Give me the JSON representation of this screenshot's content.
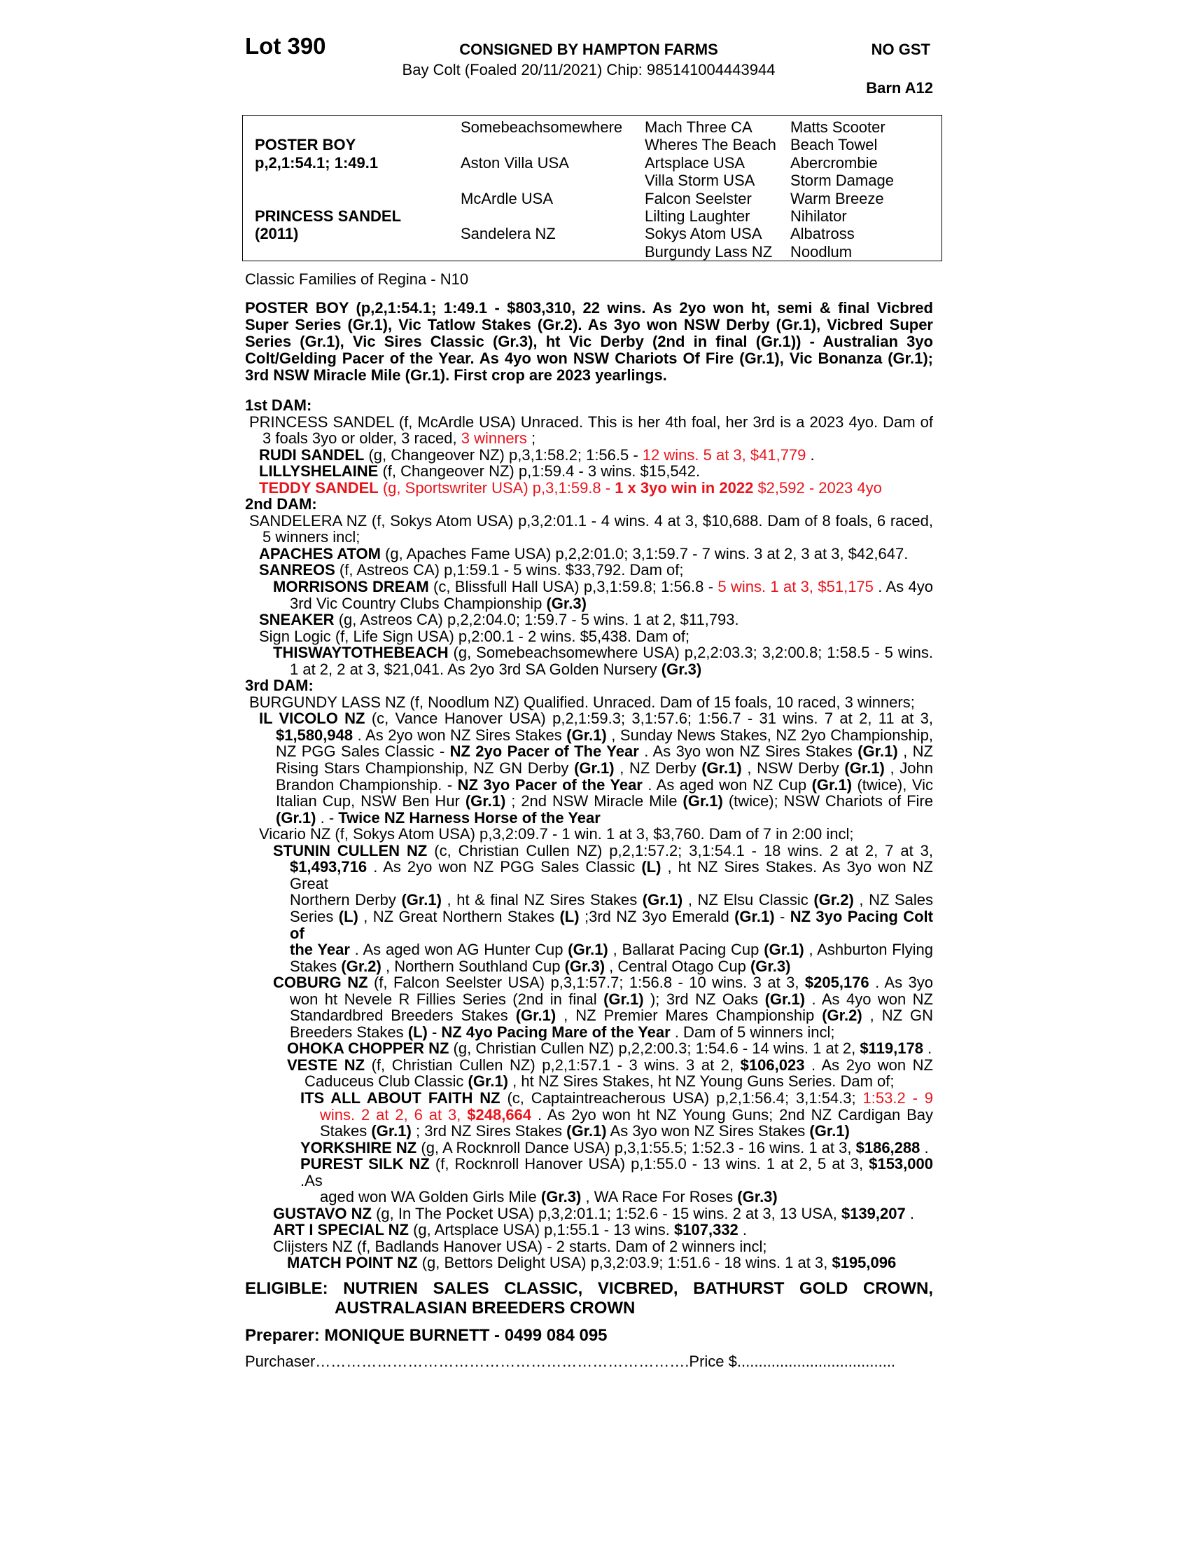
{
  "header": {
    "lot": "Lot 390",
    "consigned": "CONSIGNED BY HAMPTON FARMS",
    "gst": "NO GST",
    "description": "Bay Colt (Foaled 20/11/2021) Chip: 985141004443944",
    "barn": "Barn A12"
  },
  "pedigree": {
    "sire": "POSTER BOY",
    "sire_record": "p,2,1:54.1; 1:49.1",
    "dam": "PRINCESS SANDEL",
    "dam_year": "(2011)",
    "gen2": [
      "Somebeachsomewhere",
      "Aston Villa USA",
      "McArdle USA",
      "Sandelera NZ"
    ],
    "gen3": [
      "Mach Three CA",
      "Wheres The Beach",
      "Artsplace USA",
      "Villa Storm USA",
      "Falcon Seelster",
      "Lilting Laughter",
      "Sokys Atom USA",
      "Burgundy Lass NZ"
    ],
    "gen4": [
      "Matts Scooter",
      "Beach Towel",
      "Abercrombie",
      "Storm Damage",
      "Warm Breeze",
      "Nihilator",
      "Albatross",
      "Noodlum"
    ]
  },
  "family": "Classic Families of Regina - N10",
  "sire_para": {
    "lines": [
      [
        [
          "POSTER BOY (p,2,1:54.1; 1:49.1 - $803,310, 22 wins. As 2yo won ht, semi & final Vicbred",
          ""
        ]
      ],
      [
        [
          "Super Series (Gr.1), Vic Tatlow Stakes (Gr.2). As 3yo won NSW Derby (Gr.1), Vicbred Super",
          ""
        ]
      ],
      [
        [
          "Series (Gr.1), Vic Sires Classic (Gr.3), ht Vic Derby (2nd in final (Gr.1)) - Australian 3yo",
          ""
        ]
      ],
      [
        [
          "Colt/Gelding Pacer of the Year. As 4yo won NSW Chariots Of Fire (Gr.1), Vic Bonanza (Gr.1);",
          ""
        ]
      ],
      [
        [
          "3rd NSW Miracle Mile (Gr.1). First crop are 2023 yearlings.",
          ""
        ]
      ]
    ]
  },
  "dam_notes": {
    "entries": [
      {
        "level": "h",
        "lines": [
          [
            [
              "1st DAM:",
              "b"
            ]
          ]
        ]
      },
      {
        "level": 0,
        "lines": [
          [
            [
              "PRINCESS SANDEL (f, McArdle USA) Unraced. This is her 4th foal, her 3rd is a 2023 4yo. Dam of",
              ""
            ]
          ],
          [
            [
              "3 foals 3yo or older, 3 raced, ",
              ""
            ],
            [
              "3 winners",
              "r"
            ],
            [
              ";",
              ""
            ]
          ]
        ]
      },
      {
        "level": 1,
        "lines": [
          [
            [
              "RUDI SANDEL",
              "b"
            ],
            [
              " (g, Changeover NZ) p,3,1:58.2; 1:56.5 - ",
              ""
            ],
            [
              "12 wins. 5 at 3, $41,779",
              "r"
            ],
            [
              ".",
              ""
            ]
          ]
        ]
      },
      {
        "level": 1,
        "lines": [
          [
            [
              "LILLYSHELAINE",
              "b"
            ],
            [
              " (f, Changeover NZ) p,1:59.4 - 3 wins. $15,542.",
              ""
            ]
          ]
        ]
      },
      {
        "level": 1,
        "lines": [
          [
            [
              "TEDDY SANDEL",
              "b r"
            ],
            [
              " (g, Sportswriter USA) p,3,1:59.8 - ",
              "r"
            ],
            [
              "1 x 3yo win in 2022",
              "b r"
            ],
            [
              " $2,592 - 2023 4yo",
              "r"
            ]
          ]
        ]
      },
      {
        "level": "h",
        "lines": [
          [
            [
              "2nd DAM:",
              "b"
            ]
          ]
        ]
      },
      {
        "level": 0,
        "lines": [
          [
            [
              "SANDELERA NZ (f, Sokys Atom USA) p,3,2:01.1 - 4 wins. 4 at 3, $10,688. Dam of 8 foals, 6 raced,",
              ""
            ]
          ],
          [
            [
              "5 winners incl;",
              ""
            ]
          ]
        ]
      },
      {
        "level": 1,
        "lines": [
          [
            [
              "APACHES ATOM",
              "b"
            ],
            [
              " (g, Apaches Fame USA) p,2,2:01.0; 3,1:59.7 - 7 wins. 3 at 2, 3 at 3, $42,647.",
              ""
            ]
          ]
        ]
      },
      {
        "level": 1,
        "lines": [
          [
            [
              "SANREOS",
              "b"
            ],
            [
              " (f, Astreos CA) p,1:59.1 - 5 wins. $33,792. Dam of;",
              ""
            ]
          ]
        ]
      },
      {
        "level": 2,
        "lines": [
          [
            [
              "MORRISONS DREAM",
              "b"
            ],
            [
              " (c, Blissfull Hall USA) p,3,1:59.8; 1:56.8 - ",
              ""
            ],
            [
              "5 wins. 1 at 3, $51,175",
              "r"
            ],
            [
              ". As 4yo",
              ""
            ]
          ],
          [
            [
              "3rd Vic Country Clubs Championship ",
              ""
            ],
            [
              "(Gr.3)",
              "b"
            ]
          ]
        ]
      },
      {
        "level": 1,
        "lines": [
          [
            [
              "SNEAKER",
              "b"
            ],
            [
              " (g, Astreos CA) p,2,2:04.0; 1:59.7 - 5 wins. 1 at 2, $11,793.",
              ""
            ]
          ]
        ]
      },
      {
        "level": 1,
        "lines": [
          [
            [
              "Sign Logic (f, Life Sign USA) p,2:00.1 - 2 wins. $5,438. Dam of;",
              ""
            ]
          ]
        ]
      },
      {
        "level": 2,
        "lines": [
          [
            [
              "THISWAYTOTHEBEACH",
              "b"
            ],
            [
              " (g, Somebeachsomewhere USA) p,2,2:03.3; 3,2:00.8; 1:58.5 - 5 wins.",
              ""
            ]
          ],
          [
            [
              "1 at 2, 2 at 3, $21,041. As 2yo 3rd SA Golden Nursery ",
              ""
            ],
            [
              "(Gr.3)",
              "b"
            ]
          ]
        ]
      },
      {
        "level": "h",
        "lines": [
          [
            [
              "3rd DAM:",
              "b"
            ]
          ]
        ]
      },
      {
        "level": 0,
        "lines": [
          [
            [
              "BURGUNDY LASS NZ (f, Noodlum NZ) Qualified. Unraced. Dam of 15 foals, 10 raced, 3 winners;",
              ""
            ]
          ]
        ]
      },
      {
        "level": 1,
        "lines": [
          [
            [
              "IL VICOLO NZ",
              "b"
            ],
            [
              " (c, Vance Hanover USA) p,2,1:59.3; 3,1:57.6; 1:56.7 - 31 wins. 7 at 2, 11 at 3,",
              ""
            ]
          ],
          [
            [
              "$1,580,948",
              "b"
            ],
            [
              ". As 2yo won NZ Sires Stakes ",
              ""
            ],
            [
              "(Gr.1)",
              "b"
            ],
            [
              ", Sunday News Stakes, NZ 2yo Championship,",
              ""
            ]
          ],
          [
            [
              "NZ PGG Sales Classic - ",
              ""
            ],
            [
              "NZ 2yo Pacer of The Year",
              "b"
            ],
            [
              ". As 3yo won NZ Sires Stakes ",
              ""
            ],
            [
              "(Gr.1)",
              "b"
            ],
            [
              ", NZ",
              ""
            ]
          ],
          [
            [
              "Rising Stars Championship, NZ GN Derby ",
              ""
            ],
            [
              "(Gr.1)",
              "b"
            ],
            [
              ", NZ Derby ",
              ""
            ],
            [
              "(Gr.1)",
              "b"
            ],
            [
              ", NSW Derby ",
              ""
            ],
            [
              "(Gr.1)",
              "b"
            ],
            [
              ", John",
              ""
            ]
          ],
          [
            [
              "Brandon Championship. - ",
              ""
            ],
            [
              "NZ 3yo Pacer of the Year",
              "b"
            ],
            [
              ". As aged won NZ Cup ",
              ""
            ],
            [
              "(Gr.1)",
              "b"
            ],
            [
              " (twice), Vic",
              ""
            ]
          ],
          [
            [
              "Italian Cup, NSW Ben Hur ",
              ""
            ],
            [
              "(Gr.1)",
              "b"
            ],
            [
              "; 2nd NSW Miracle Mile ",
              ""
            ],
            [
              "(Gr.1)",
              "b"
            ],
            [
              " (twice); NSW Chariots of Fire",
              ""
            ]
          ],
          [
            [
              "(Gr.1)",
              "b"
            ],
            [
              ". - ",
              ""
            ],
            [
              "Twice NZ Harness Horse of the Year",
              "b"
            ]
          ]
        ]
      },
      {
        "level": 1,
        "lines": [
          [
            [
              "Vicario NZ (f, Sokys Atom USA) p,3,2:09.7 - 1 win. 1 at 3, $3,760. Dam of 7 in 2:00 incl;",
              ""
            ]
          ]
        ]
      },
      {
        "level": 2,
        "lines": [
          [
            [
              "STUNIN CULLEN NZ",
              "b"
            ],
            [
              " (c, Christian Cullen NZ) p,2,1:57.2; 3,1:54.1 - 18 wins. 2 at 2, 7 at 3,",
              ""
            ]
          ],
          [
            [
              "$1,493,716",
              "b"
            ],
            [
              ". As 2yo won NZ PGG Sales Classic ",
              ""
            ],
            [
              "(L)",
              "b"
            ],
            [
              ", ht NZ Sires Stakes. As 3yo won NZ Great",
              ""
            ]
          ],
          [
            [
              "Northern Derby ",
              ""
            ],
            [
              "(Gr.1)",
              "b"
            ],
            [
              ", ht & final NZ Sires Stakes ",
              ""
            ],
            [
              "(Gr.1)",
              "b"
            ],
            [
              ", NZ Elsu Classic ",
              ""
            ],
            [
              "(Gr.2)",
              "b"
            ],
            [
              ", NZ Sales",
              ""
            ]
          ],
          [
            [
              "Series ",
              ""
            ],
            [
              "(L)",
              "b"
            ],
            [
              ", NZ Great Northern Stakes ",
              ""
            ],
            [
              "(L)",
              "b"
            ],
            [
              ";3rd NZ 3yo Emerald ",
              ""
            ],
            [
              "(Gr.1)",
              "b"
            ],
            [
              " - ",
              ""
            ],
            [
              "NZ 3yo Pacing Colt of",
              "b"
            ]
          ],
          [
            [
              "the Year",
              "b"
            ],
            [
              ". As aged won AG Hunter Cup ",
              ""
            ],
            [
              "(Gr.1)",
              "b"
            ],
            [
              ", Ballarat Pacing Cup ",
              ""
            ],
            [
              "(Gr.1)",
              "b"
            ],
            [
              ", Ashburton Flying",
              ""
            ]
          ],
          [
            [
              "Stakes ",
              ""
            ],
            [
              "(Gr.2)",
              "b"
            ],
            [
              ", Northern Southland Cup ",
              ""
            ],
            [
              "(Gr.3)",
              "b"
            ],
            [
              ", Central Otago Cup ",
              ""
            ],
            [
              "(Gr.3)",
              "b"
            ]
          ]
        ]
      },
      {
        "level": 2,
        "lines": [
          [
            [
              "COBURG NZ",
              "b"
            ],
            [
              " (f, Falcon Seelster USA) p,3,1:57.7; 1:56.8 - 10 wins. 3 at 3, ",
              ""
            ],
            [
              "$205,176",
              "b"
            ],
            [
              ". As 3yo",
              ""
            ]
          ],
          [
            [
              "won ht Nevele R Fillies Series (2nd in final ",
              ""
            ],
            [
              "(Gr.1)",
              "b"
            ],
            [
              "); 3rd NZ Oaks ",
              ""
            ],
            [
              "(Gr.1)",
              "b"
            ],
            [
              ". As 4yo won NZ",
              ""
            ]
          ],
          [
            [
              "Standardbred Breeders Stakes ",
              ""
            ],
            [
              "(Gr.1)",
              "b"
            ],
            [
              ", NZ Premier Mares Championship ",
              ""
            ],
            [
              "(Gr.2)",
              "b"
            ],
            [
              ", NZ GN",
              ""
            ]
          ],
          [
            [
              "Breeders Stakes ",
              ""
            ],
            [
              "(L)",
              "b"
            ],
            [
              " - ",
              ""
            ],
            [
              "NZ 4yo Pacing Mare of the Year",
              "b"
            ],
            [
              ". Dam of 5 winners incl;",
              ""
            ]
          ]
        ]
      },
      {
        "level": 3,
        "lines": [
          [
            [
              "OHOKA CHOPPER NZ",
              "b"
            ],
            [
              " (g, Christian Cullen NZ) p,2,2:00.3; 1:54.6 - 14 wins. 1 at 2, ",
              ""
            ],
            [
              "$119,178",
              "b"
            ],
            [
              ".",
              ""
            ]
          ]
        ]
      },
      {
        "level": 3,
        "lines": [
          [
            [
              "VESTE NZ",
              "b"
            ],
            [
              " (f, Christian Cullen NZ) p,2,1:57.1 - 3 wins. 3 at 2, ",
              ""
            ],
            [
              "$106,023",
              "b"
            ],
            [
              ". As 2yo won NZ",
              ""
            ]
          ],
          [
            [
              "Caduceus Club Classic ",
              ""
            ],
            [
              "(Gr.1)",
              "b"
            ],
            [
              ", ht NZ Sires Stakes, ht NZ Young Guns Series. Dam of;",
              ""
            ]
          ]
        ]
      },
      {
        "level": 4,
        "lines": [
          [
            [
              "ITS ALL ABOUT FAITH NZ",
              "b"
            ],
            [
              " (c, Captaintreacherous USA) p,2,1:56.4; 3,1:54.3; ",
              ""
            ],
            [
              "1:53.2 - 9",
              "r"
            ]
          ],
          [
            [
              "wins. 2 at 2, 6 at 3, ",
              "r"
            ],
            [
              "$248,664",
              "b r"
            ],
            [
              ". As 2yo won ht NZ Young Guns; 2nd NZ Cardigan Bay",
              ""
            ]
          ],
          [
            [
              "Stakes ",
              ""
            ],
            [
              "(Gr.1)",
              "b"
            ],
            [
              "; 3rd NZ Sires Stakes ",
              ""
            ],
            [
              "(Gr.1)",
              "b"
            ],
            [
              " As 3yo won NZ Sires Stakes ",
              ""
            ],
            [
              "(Gr.1)",
              "b"
            ]
          ]
        ]
      },
      {
        "level": 4,
        "lines": [
          [
            [
              "YORKSHIRE NZ",
              "b"
            ],
            [
              " (g, A Rocknroll Dance USA) p,3,1:55.5; 1:52.3 - 16 wins. 1 at 3, ",
              ""
            ],
            [
              "$186,288",
              "b"
            ],
            [
              ".",
              ""
            ]
          ]
        ]
      },
      {
        "level": 4,
        "lines": [
          [
            [
              "PUREST SILK NZ",
              "b"
            ],
            [
              " (f, Rocknroll Hanover USA) p,1:55.0 - 13 wins. 1 at 2, 5 at 3, ",
              ""
            ],
            [
              "$153,000",
              "b"
            ],
            [
              ".As",
              ""
            ]
          ],
          [
            [
              "aged won WA Golden Girls Mile ",
              ""
            ],
            [
              "(Gr.3)",
              "b"
            ],
            [
              ", WA Race For Roses ",
              ""
            ],
            [
              "(Gr.3)",
              "b"
            ]
          ]
        ]
      },
      {
        "level": 2,
        "lines": [
          [
            [
              "GUSTAVO NZ",
              "b"
            ],
            [
              " (g, In The Pocket USA) p,3,2:01.1; 1:52.6 - 15 wins. 2 at 3, 13 USA, ",
              ""
            ],
            [
              "$139,207",
              "b"
            ],
            [
              ".",
              ""
            ]
          ]
        ]
      },
      {
        "level": 2,
        "lines": [
          [
            [
              "ART I SPECIAL NZ",
              "b"
            ],
            [
              " (g, Artsplace USA) p,1:55.1 - 13 wins. ",
              ""
            ],
            [
              "$107,332",
              "b"
            ],
            [
              ".",
              ""
            ]
          ]
        ]
      },
      {
        "level": 2,
        "lines": [
          [
            [
              "Clijsters NZ (f, Badlands Hanover USA) - 2 starts. Dam of 2 winners incl;",
              ""
            ]
          ]
        ]
      },
      {
        "level": 3,
        "lines": [
          [
            [
              "MATCH POINT NZ",
              "b"
            ],
            [
              " (g, Bettors Delight USA) p,3,2:03.9; 1:51.6 - 18 wins. 1 at 3, ",
              ""
            ],
            [
              "$195,096",
              "b"
            ]
          ]
        ]
      }
    ]
  },
  "eligible": {
    "line1": "ELIGIBLE: NUTRIEN SALES CLASSIC, VICBRED, BATHURST GOLD CROWN,",
    "line2": "AUSTRALASIAN BREEDERS CROWN"
  },
  "preparer": "Preparer: MONIQUE BURNETT - 0499 084 095",
  "purchaser": {
    "label": "Purchaser",
    "leader": "……………………………………………………………….",
    "price_label": "Price $",
    "price_leader": "....................................."
  },
  "colors": {
    "text": "#000000",
    "highlight_red": "#e8141c"
  }
}
